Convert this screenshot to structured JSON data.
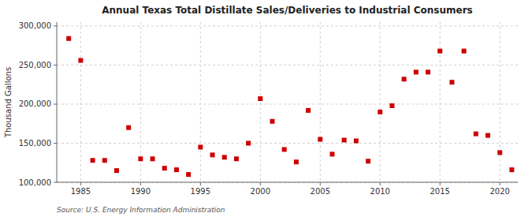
{
  "chart_data": {
    "type": "scatter",
    "title": "Annual Texas Total Distillate Sales/Deliveries to Industrial Consumers",
    "ylabel": "Thousand Gallons",
    "source": "Source: U.S. Energy Information Administration",
    "color": "#cc0000",
    "marker": "square",
    "grid": true,
    "xlim": [
      1983,
      2021.5
    ],
    "ylim": [
      100000,
      305000
    ],
    "xticks": [
      1985,
      1990,
      1995,
      2000,
      2005,
      2010,
      2015,
      2020
    ],
    "yticks": [
      {
        "value": 100000,
        "label": "100,000"
      },
      {
        "value": 150000,
        "label": "150,000"
      },
      {
        "value": 200000,
        "label": "200,000"
      },
      {
        "value": 250000,
        "label": "250,000"
      },
      {
        "value": 300000,
        "label": "300,000"
      }
    ],
    "x": [
      1984,
      1985,
      1986,
      1987,
      1988,
      1989,
      1990,
      1991,
      1992,
      1993,
      1994,
      1995,
      1996,
      1997,
      1998,
      1999,
      2000,
      2001,
      2002,
      2003,
      2004,
      2005,
      2006,
      2007,
      2008,
      2009,
      2010,
      2011,
      2012,
      2013,
      2014,
      2015,
      2016,
      2017,
      2018,
      2019,
      2020,
      2021
    ],
    "values": [
      284000,
      256000,
      128000,
      128000,
      115000,
      170000,
      130000,
      130000,
      118000,
      116000,
      110000,
      145000,
      135000,
      132000,
      130000,
      150000,
      207000,
      178000,
      142000,
      126000,
      192000,
      155000,
      136000,
      154000,
      153000,
      127000,
      190000,
      198000,
      232000,
      241000,
      241000,
      268000,
      228000,
      268000,
      162000,
      160000,
      138000,
      116000
    ]
  }
}
